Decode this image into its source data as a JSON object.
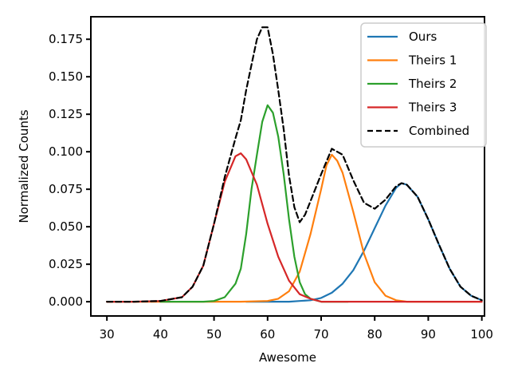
{
  "chart_data": {
    "type": "line",
    "xlabel": "Awesome",
    "ylabel": "Normalized Counts",
    "xlim": [
      27,
      100.5
    ],
    "ylim": [
      -0.0095,
      0.19
    ],
    "x_ticks": [
      30,
      40,
      50,
      60,
      70,
      80,
      90,
      100
    ],
    "x_tick_labels": [
      "30",
      "40",
      "50",
      "60",
      "70",
      "80",
      "90",
      "100"
    ],
    "y_ticks": [
      0.0,
      0.025,
      0.05,
      0.075,
      0.1,
      0.125,
      0.15,
      0.175
    ],
    "y_tick_labels": [
      "0.000",
      "0.025",
      "0.050",
      "0.075",
      "0.100",
      "0.125",
      "0.150",
      "0.175"
    ],
    "grid": false,
    "legend_position": "top-right",
    "series": [
      {
        "name": "Ours",
        "color": "#1f77b4",
        "dash": "solid",
        "x": [
          56,
          58,
          60,
          62,
          64,
          66,
          68,
          70,
          72,
          74,
          76,
          78,
          80,
          82,
          84,
          85,
          86,
          88,
          90,
          92,
          94,
          96,
          98,
          100
        ],
        "y": [
          0.0,
          0.0,
          0.0,
          0.0,
          0.0,
          0.0005,
          0.001,
          0.0025,
          0.006,
          0.012,
          0.021,
          0.034,
          0.049,
          0.064,
          0.076,
          0.079,
          0.078,
          0.07,
          0.055,
          0.038,
          0.022,
          0.01,
          0.004,
          0.001
        ]
      },
      {
        "name": "Theirs 1",
        "color": "#ff7f0e",
        "dash": "solid",
        "x": [
          30,
          40,
          50,
          55,
          60,
          62,
          64,
          66,
          68,
          70,
          71,
          72,
          73,
          74,
          76,
          78,
          80,
          82,
          84,
          86,
          88,
          90,
          100
        ],
        "y": [
          0.0,
          0.0,
          0.0,
          0.0,
          0.0005,
          0.002,
          0.007,
          0.02,
          0.045,
          0.075,
          0.091,
          0.098,
          0.094,
          0.086,
          0.06,
          0.032,
          0.013,
          0.004,
          0.001,
          0.0,
          0.0,
          0.0,
          0.0
        ]
      },
      {
        "name": "Theirs 2",
        "color": "#2ca02c",
        "dash": "solid",
        "x": [
          40,
          45,
          48,
          50,
          52,
          54,
          55,
          56,
          57,
          58,
          59,
          60,
          61,
          62,
          63,
          64,
          65,
          66,
          67,
          68,
          70,
          75
        ],
        "y": [
          0.0,
          0.0,
          0.0,
          0.0005,
          0.003,
          0.012,
          0.022,
          0.045,
          0.075,
          0.098,
          0.12,
          0.131,
          0.126,
          0.11,
          0.085,
          0.055,
          0.03,
          0.013,
          0.005,
          0.002,
          0.0,
          0.0
        ]
      },
      {
        "name": "Theirs 3",
        "color": "#d62728",
        "dash": "solid",
        "x": [
          30,
          35,
          40,
          44,
          46,
          48,
          50,
          52,
          54,
          55,
          56,
          58,
          60,
          62,
          64,
          66,
          68,
          70,
          75,
          80,
          90,
          100
        ],
        "y": [
          0.0,
          0.0,
          0.0005,
          0.003,
          0.01,
          0.024,
          0.052,
          0.08,
          0.097,
          0.099,
          0.095,
          0.078,
          0.052,
          0.03,
          0.014,
          0.005,
          0.002,
          0.0,
          0.0,
          0.0,
          0.0,
          0.0
        ]
      },
      {
        "name": "Combined",
        "color": "#000000",
        "dash": "dashed",
        "x": [
          30,
          35,
          40,
          44,
          46,
          48,
          50,
          52,
          54,
          55,
          56,
          57,
          58,
          59,
          60,
          61,
          62,
          63,
          64,
          65,
          66,
          67,
          68,
          70,
          72,
          74,
          76,
          78,
          80,
          82,
          84,
          85,
          86,
          88,
          90,
          92,
          94,
          96,
          98,
          100
        ],
        "y": [
          0.0,
          0.0,
          0.0005,
          0.003,
          0.01,
          0.024,
          0.052,
          0.083,
          0.109,
          0.121,
          0.141,
          0.158,
          0.175,
          0.183,
          0.183,
          0.165,
          0.141,
          0.115,
          0.084,
          0.063,
          0.053,
          0.058,
          0.067,
          0.085,
          0.102,
          0.098,
          0.081,
          0.066,
          0.062,
          0.068,
          0.077,
          0.079,
          0.078,
          0.07,
          0.055,
          0.038,
          0.022,
          0.01,
          0.004,
          0.001
        ]
      }
    ]
  }
}
